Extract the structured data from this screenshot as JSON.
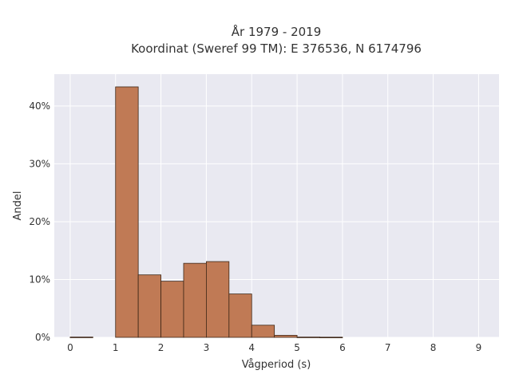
{
  "chart_data": {
    "type": "bar",
    "title": "År 1979 - 2019",
    "subtitle": "Koordinat (Sweref 99 TM): E 376536, N 6174796",
    "xlabel": "Vågperiod (s)",
    "ylabel": "Andel",
    "xlim": [
      -0.35,
      9.45
    ],
    "ylim": [
      0,
      45.5
    ],
    "x_ticks": [
      0,
      1,
      2,
      3,
      4,
      5,
      6,
      7,
      8,
      9
    ],
    "y_ticks": [
      0,
      10,
      20,
      30,
      40
    ],
    "y_tick_labels": [
      "0%",
      "10%",
      "20%",
      "30%",
      "40%"
    ],
    "bin_width": 0.5,
    "bins": [
      {
        "x0": 0.0,
        "value": 0.05
      },
      {
        "x0": 0.5,
        "value": 0.0
      },
      {
        "x0": 1.0,
        "value": 43.3
      },
      {
        "x0": 1.5,
        "value": 10.8
      },
      {
        "x0": 2.0,
        "value": 9.7
      },
      {
        "x0": 2.5,
        "value": 12.8
      },
      {
        "x0": 3.0,
        "value": 13.1
      },
      {
        "x0": 3.5,
        "value": 7.5
      },
      {
        "x0": 4.0,
        "value": 2.1
      },
      {
        "x0": 4.5,
        "value": 0.35
      },
      {
        "x0": 5.0,
        "value": 0.05
      },
      {
        "x0": 5.5,
        "value": 0.03
      }
    ],
    "grid": true,
    "colors": {
      "bar_fill": "#c07a55",
      "bar_edge": "#3d2616",
      "plot_bg": "#e9e9f1",
      "grid": "#ffffff"
    }
  }
}
